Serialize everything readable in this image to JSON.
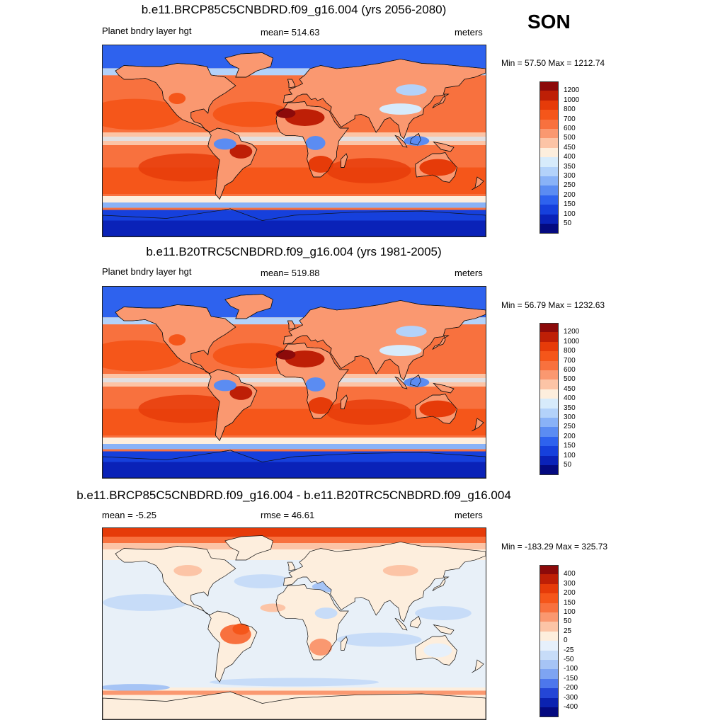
{
  "season": "SON",
  "panels": [
    {
      "title": "b.e11.BRCP85C5CNBDRD.f09_g16.004 (yrs 2056-2080)",
      "left": "Planet bndry layer hgt",
      "center": "mean= 514.63",
      "right": "meters",
      "minmax": "Min =  57.50 Max = 1212.74",
      "cb_labels": [
        "1200",
        "1000",
        "800",
        "700",
        "600",
        "500",
        "450",
        "400",
        "350",
        "300",
        "250",
        "200",
        "150",
        "100",
        "50"
      ],
      "cb_colors": [
        "#8c0a0a",
        "#be1f06",
        "#e63b09",
        "#f5561a",
        "#f8713e",
        "#fa9870",
        "#fcc4a6",
        "#fdeedd",
        "#d7ebfb",
        "#b3d2fa",
        "#89b2f7",
        "#5b8cf2",
        "#2e62ee",
        "#1640dc",
        "#0a22b8",
        "#040a80"
      ],
      "mode": "abs",
      "polar_frac": 0.12
    },
    {
      "title": "b.e11.B20TRC5CNBDRD.f09_g16.004 (yrs 1981-2005)",
      "left": "Planet bndry layer hgt",
      "center": "mean= 519.88",
      "right": "meters",
      "minmax": "Min =  56.79 Max = 1232.63",
      "cb_labels": [
        "1200",
        "1000",
        "800",
        "700",
        "600",
        "500",
        "450",
        "400",
        "350",
        "300",
        "250",
        "200",
        "150",
        "100",
        "50"
      ],
      "cb_colors": [
        "#8c0a0a",
        "#be1f06",
        "#e63b09",
        "#f5561a",
        "#f8713e",
        "#fa9870",
        "#fcc4a6",
        "#fdeedd",
        "#d7ebfb",
        "#b3d2fa",
        "#89b2f7",
        "#5b8cf2",
        "#2e62ee",
        "#1640dc",
        "#0a22b8",
        "#040a80"
      ],
      "mode": "abs",
      "polar_frac": 0.16
    },
    {
      "title": "b.e11.BRCP85C5CNBDRD.f09_g16.004 - b.e11.B20TRC5CNBDRD.f09_g16.004",
      "left": "mean =  -5.25",
      "center": "rmse =  46.61",
      "right": "meters",
      "minmax": "Min = -183.29 Max = 325.73",
      "cb_labels": [
        "400",
        "300",
        "200",
        "150",
        "100",
        "50",
        "25",
        "0",
        "-25",
        "-50",
        "-100",
        "-150",
        "-200",
        "-300",
        "-400"
      ],
      "cb_colors": [
        "#8c0a0a",
        "#be1f06",
        "#e63b09",
        "#f5561a",
        "#f8713e",
        "#fa9870",
        "#fcc4a6",
        "#fdeedd",
        "#e6f0fb",
        "#c7dcf8",
        "#a6c4f5",
        "#7ea4f2",
        "#4d77ec",
        "#2446d6",
        "#0b22b0",
        "#040a80"
      ],
      "mode": "diff",
      "polar_frac": 0.0
    }
  ]
}
